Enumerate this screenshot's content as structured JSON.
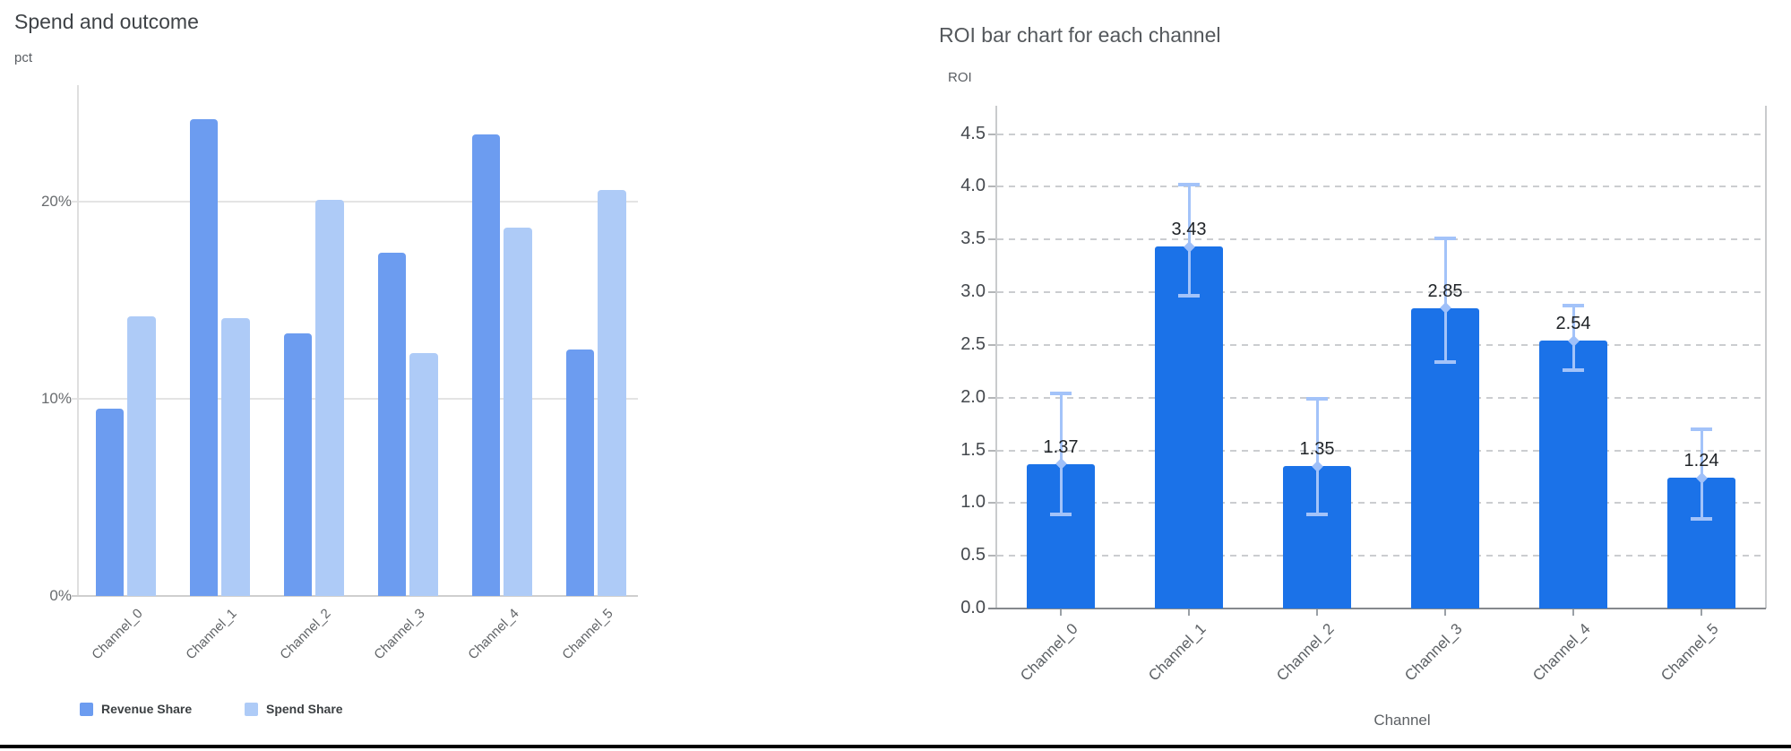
{
  "chart_data": [
    {
      "type": "bar",
      "title": "Spend and outcome",
      "y_axis_unit": "pct",
      "categories": [
        "Channel_0",
        "Channel_1",
        "Channel_2",
        "Channel_3",
        "Channel_4",
        "Channel_5"
      ],
      "series": [
        {
          "name": "Revenue Share",
          "color": "#6c9cf0",
          "values": [
            9.5,
            24.2,
            13.3,
            17.4,
            23.4,
            12.5
          ]
        },
        {
          "name": "Spend Share",
          "color": "#aecbf7",
          "values": [
            14.2,
            14.1,
            20.1,
            12.3,
            18.7,
            20.6
          ]
        }
      ],
      "y_ticks": [
        {
          "v": 0,
          "label": "0%"
        },
        {
          "v": 10,
          "label": "10%"
        },
        {
          "v": 20,
          "label": "20%"
        }
      ],
      "ylim": [
        0,
        25.9
      ],
      "grid": "solid",
      "legend_position": "bottom"
    },
    {
      "type": "bar",
      "title": "ROI bar chart for each channel",
      "ylabel": "ROI",
      "xlabel": "Channel",
      "categories": [
        "Channel_0",
        "Channel_1",
        "Channel_2",
        "Channel_3",
        "Channel_4",
        "Channel_5"
      ],
      "values": [
        1.37,
        3.43,
        1.35,
        2.85,
        2.54,
        1.24
      ],
      "value_labels": [
        "1.37",
        "3.43",
        "1.35",
        "2.85",
        "2.54",
        "1.24"
      ],
      "error_low": [
        0.88,
        2.96,
        0.88,
        2.33,
        2.25,
        0.84
      ],
      "error_high": [
        2.05,
        4.03,
        2.0,
        3.52,
        2.88,
        1.71
      ],
      "bar_color": "#1b72e8",
      "error_bar_color": "#a3c3f9",
      "error_marker_color": "#9fc0f9",
      "y_ticks": [
        {
          "v": 0.0,
          "label": "0.0"
        },
        {
          "v": 0.5,
          "label": "0.5"
        },
        {
          "v": 1.0,
          "label": "1.0"
        },
        {
          "v": 1.5,
          "label": "1.5"
        },
        {
          "v": 2.0,
          "label": "2.0"
        },
        {
          "v": 2.5,
          "label": "2.5"
        },
        {
          "v": 3.0,
          "label": "3.0"
        },
        {
          "v": 3.5,
          "label": "3.5"
        },
        {
          "v": 4.0,
          "label": "4.0"
        },
        {
          "v": 4.5,
          "label": "4.5"
        }
      ],
      "ylim": [
        0,
        4.77
      ],
      "grid": "dashed",
      "legend_position": "none"
    }
  ],
  "page": {
    "background": "#ffffff",
    "bottom_border_color": "#000000"
  }
}
